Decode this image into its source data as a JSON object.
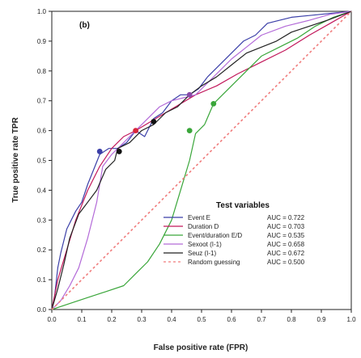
{
  "chart_data": {
    "type": "line",
    "panel_label": "(b)",
    "xlabel": "False positive rate (FPR)",
    "ylabel": "True positive rate TPR",
    "xlim": [
      0,
      1
    ],
    "ylim": [
      0,
      1
    ],
    "xticks": [
      "0.0",
      "0.1",
      "0.2",
      "0.3",
      "0.4",
      "0.5",
      "0.6",
      "0.7",
      "0.8",
      "0.9",
      "1.0"
    ],
    "yticks": [
      "0.0",
      "0.1",
      "0.2",
      "0.3",
      "0.4",
      "0.5",
      "0.6",
      "0.7",
      "0.8",
      "0.9",
      "1.0"
    ],
    "grid": false,
    "legend": {
      "title": "Test variables",
      "placement": "bottom-right"
    },
    "series": [
      {
        "name": "Event E",
        "auc": "AUC = 0.722",
        "color": "#3b3fa8",
        "dash": "solid",
        "points": [
          [
            0,
            0
          ],
          [
            0.01,
            0.05
          ],
          [
            0.02,
            0.14
          ],
          [
            0.03,
            0.19
          ],
          [
            0.05,
            0.27
          ],
          [
            0.08,
            0.33
          ],
          [
            0.1,
            0.36
          ],
          [
            0.12,
            0.42
          ],
          [
            0.14,
            0.47
          ],
          [
            0.16,
            0.52
          ],
          [
            0.19,
            0.54
          ],
          [
            0.22,
            0.54
          ],
          [
            0.25,
            0.56
          ],
          [
            0.28,
            0.6
          ],
          [
            0.31,
            0.58
          ],
          [
            0.34,
            0.64
          ],
          [
            0.37,
            0.66
          ],
          [
            0.4,
            0.7
          ],
          [
            0.43,
            0.72
          ],
          [
            0.46,
            0.72
          ],
          [
            0.49,
            0.74
          ],
          [
            0.52,
            0.78
          ],
          [
            0.56,
            0.82
          ],
          [
            0.6,
            0.86
          ],
          [
            0.64,
            0.9
          ],
          [
            0.68,
            0.92
          ],
          [
            0.72,
            0.96
          ],
          [
            0.8,
            0.98
          ],
          [
            0.9,
            0.99
          ],
          [
            1,
            1
          ]
        ]
      },
      {
        "name": "Duration D",
        "auc": "AUC = 0.703",
        "color": "#c2185b",
        "dash": "solid",
        "points": [
          [
            0,
            0
          ],
          [
            0.02,
            0.1
          ],
          [
            0.05,
            0.2
          ],
          [
            0.08,
            0.3
          ],
          [
            0.12,
            0.4
          ],
          [
            0.16,
            0.48
          ],
          [
            0.2,
            0.54
          ],
          [
            0.24,
            0.58
          ],
          [
            0.28,
            0.6
          ],
          [
            0.33,
            0.63
          ],
          [
            0.38,
            0.66
          ],
          [
            0.43,
            0.69
          ],
          [
            0.48,
            0.72
          ],
          [
            0.55,
            0.75
          ],
          [
            0.62,
            0.79
          ],
          [
            0.7,
            0.83
          ],
          [
            0.78,
            0.87
          ],
          [
            0.86,
            0.92
          ],
          [
            0.93,
            0.96
          ],
          [
            1,
            1
          ]
        ]
      },
      {
        "name": "Event/duration E/D",
        "auc": "AUC = 0.535",
        "color": "#3aa63a",
        "dash": "solid",
        "points": [
          [
            0,
            0
          ],
          [
            0.06,
            0.02
          ],
          [
            0.12,
            0.04
          ],
          [
            0.18,
            0.06
          ],
          [
            0.24,
            0.08
          ],
          [
            0.28,
            0.12
          ],
          [
            0.32,
            0.16
          ],
          [
            0.36,
            0.22
          ],
          [
            0.4,
            0.3
          ],
          [
            0.43,
            0.4
          ],
          [
            0.46,
            0.5
          ],
          [
            0.48,
            0.59
          ],
          [
            0.51,
            0.62
          ],
          [
            0.54,
            0.69
          ],
          [
            0.57,
            0.72
          ],
          [
            0.61,
            0.76
          ],
          [
            0.65,
            0.8
          ],
          [
            0.7,
            0.85
          ],
          [
            0.76,
            0.88
          ],
          [
            0.82,
            0.91
          ],
          [
            0.88,
            0.95
          ],
          [
            0.94,
            0.98
          ],
          [
            1,
            1
          ]
        ]
      },
      {
        "name": "Sexoot (I-1)",
        "auc": "AUC = 0.658",
        "color": "#b36ad8",
        "dash": "solid",
        "points": [
          [
            0,
            0
          ],
          [
            0.03,
            0.03
          ],
          [
            0.06,
            0.08
          ],
          [
            0.09,
            0.14
          ],
          [
            0.12,
            0.24
          ],
          [
            0.15,
            0.36
          ],
          [
            0.17,
            0.48
          ],
          [
            0.2,
            0.52
          ],
          [
            0.24,
            0.56
          ],
          [
            0.28,
            0.6
          ],
          [
            0.32,
            0.64
          ],
          [
            0.36,
            0.68
          ],
          [
            0.4,
            0.7
          ],
          [
            0.44,
            0.71
          ],
          [
            0.48,
            0.72
          ],
          [
            0.52,
            0.76
          ],
          [
            0.56,
            0.8
          ],
          [
            0.6,
            0.84
          ],
          [
            0.65,
            0.88
          ],
          [
            0.7,
            0.92
          ],
          [
            0.78,
            0.95
          ],
          [
            0.86,
            0.97
          ],
          [
            0.93,
            0.99
          ],
          [
            1,
            1
          ]
        ]
      },
      {
        "name": "Seuz (I-1)",
        "auc": "AUC = 0.672",
        "color": "#222222",
        "dash": "solid",
        "points": [
          [
            0,
            0
          ],
          [
            0.02,
            0.07
          ],
          [
            0.04,
            0.15
          ],
          [
            0.06,
            0.24
          ],
          [
            0.09,
            0.32
          ],
          [
            0.12,
            0.36
          ],
          [
            0.15,
            0.4
          ],
          [
            0.18,
            0.47
          ],
          [
            0.21,
            0.5
          ],
          [
            0.22,
            0.54
          ],
          [
            0.26,
            0.56
          ],
          [
            0.3,
            0.6
          ],
          [
            0.34,
            0.62
          ],
          [
            0.38,
            0.66
          ],
          [
            0.42,
            0.68
          ],
          [
            0.46,
            0.72
          ],
          [
            0.5,
            0.75
          ],
          [
            0.55,
            0.78
          ],
          [
            0.6,
            0.82
          ],
          [
            0.65,
            0.86
          ],
          [
            0.7,
            0.88
          ],
          [
            0.75,
            0.9
          ],
          [
            0.8,
            0.93
          ],
          [
            0.86,
            0.95
          ],
          [
            0.92,
            0.97
          ],
          [
            1,
            1
          ]
        ]
      },
      {
        "name": "Random guessing",
        "auc": "AUC = 0.500",
        "color": "#f07c7c",
        "dash": "dotted",
        "points": [
          [
            0,
            0
          ],
          [
            1,
            1
          ]
        ]
      }
    ],
    "markers": [
      {
        "x": 0.16,
        "y": 0.53,
        "color": "#3b3fa8"
      },
      {
        "x": 0.225,
        "y": 0.53,
        "color": "#111111"
      },
      {
        "x": 0.28,
        "y": 0.6,
        "color": "#d8263a"
      },
      {
        "x": 0.34,
        "y": 0.63,
        "color": "#111111"
      },
      {
        "x": 0.46,
        "y": 0.6,
        "color": "#3aa63a"
      },
      {
        "x": 0.46,
        "y": 0.72,
        "color": "#8a4aa8"
      },
      {
        "x": 0.54,
        "y": 0.69,
        "color": "#3aa63a"
      }
    ]
  }
}
